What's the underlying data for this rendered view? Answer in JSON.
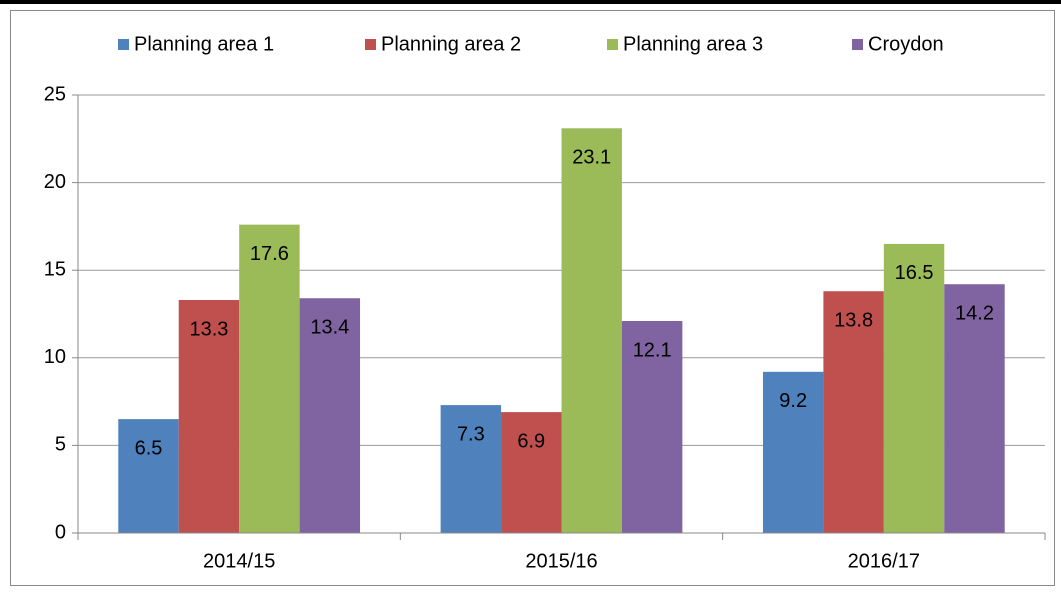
{
  "chart_data": {
    "type": "bar",
    "categories": [
      "2014/15",
      "2015/16",
      "2016/17"
    ],
    "series": [
      {
        "name": "Planning area 1",
        "color": "#4f81bd",
        "values": [
          6.5,
          7.3,
          9.2
        ]
      },
      {
        "name": "Planning area 2",
        "color": "#c0504d",
        "values": [
          13.3,
          6.9,
          13.8
        ]
      },
      {
        "name": "Planning area 3",
        "color": "#9bbb59",
        "values": [
          17.6,
          23.1,
          16.5
        ]
      },
      {
        "name": "Croydon",
        "color": "#8064a2",
        "values": [
          13.4,
          12.1,
          14.2
        ]
      }
    ],
    "ylim": [
      0,
      25
    ],
    "yticks": [
      0,
      5,
      10,
      15,
      20,
      25
    ],
    "grid": true,
    "legend": "top"
  }
}
